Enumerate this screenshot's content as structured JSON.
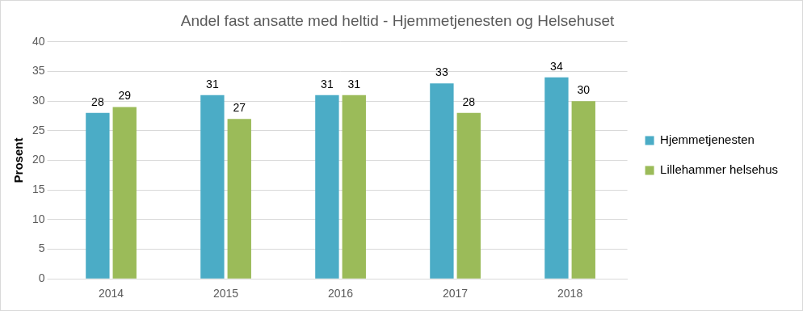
{
  "chart_data": {
    "type": "bar",
    "title": "Andel fast ansatte med heltid - Hjemmetjenesten og Helsehuset",
    "y_label": "Prosent",
    "categories": [
      "2014",
      "2015",
      "2016",
      "2017",
      "2018"
    ],
    "series": [
      {
        "name": "Hjemmetjenesten",
        "color": "#4bacc6",
        "values": [
          28,
          31,
          31,
          33,
          34
        ]
      },
      {
        "name": "Lillehammer helsehus",
        "color": "#9bbb59",
        "values": [
          29,
          27,
          31,
          28,
          30
        ]
      }
    ],
    "ylim": [
      0,
      40
    ],
    "yticks": [
      0,
      5,
      10,
      15,
      20,
      25,
      30,
      35,
      40
    ],
    "grid": true,
    "legend": "right",
    "data_labels": true
  }
}
